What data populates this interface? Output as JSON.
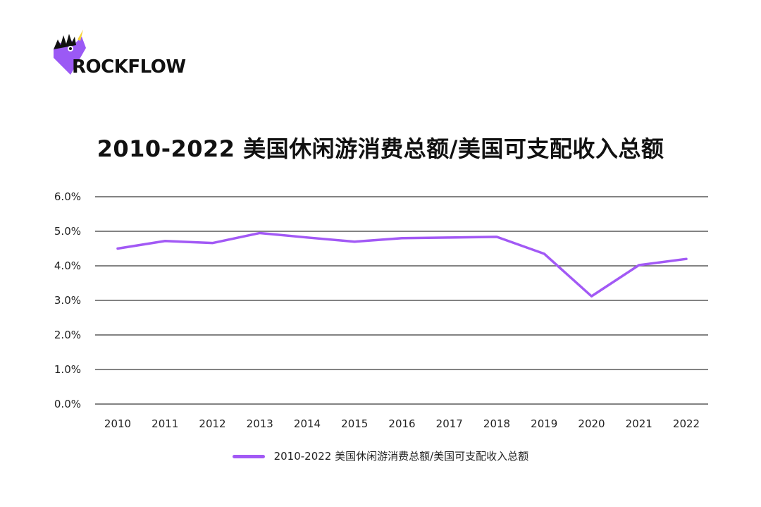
{
  "brand": {
    "name": "ROCKFLOW",
    "accent": "#9b59f5"
  },
  "chart_data": {
    "type": "line",
    "title": "2010-2022 美国休闲游消费总额/美国可支配收入总额",
    "xlabel": "",
    "ylabel": "",
    "categories": [
      "2010",
      "2011",
      "2012",
      "2013",
      "2014",
      "2015",
      "2016",
      "2017",
      "2018",
      "2019",
      "2020",
      "2021",
      "2022"
    ],
    "series": [
      {
        "name": "2010-2022 美国休闲游消费总额/美国可支配收入总额",
        "color": "#a259f5",
        "values": [
          4.5,
          4.72,
          4.66,
          4.95,
          4.82,
          4.7,
          4.8,
          4.82,
          4.84,
          4.35,
          3.12,
          4.02,
          4.2
        ]
      }
    ],
    "ylim": [
      0,
      6
    ],
    "yticks": [
      "0.0%",
      "1.0%",
      "2.0%",
      "3.0%",
      "4.0%",
      "5.0%",
      "6.0%"
    ],
    "grid": true,
    "legend": "bottom"
  }
}
